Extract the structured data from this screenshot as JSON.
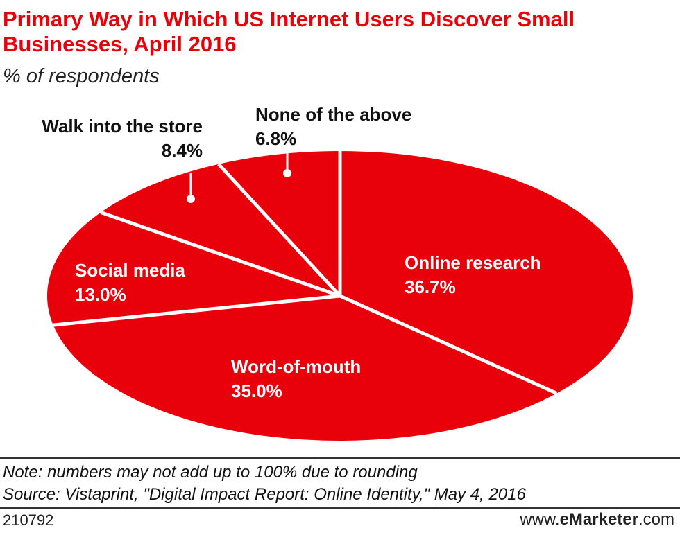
{
  "header": {
    "title": "Primary Way in Which US Internet Users Discover Small Businesses, April 2016",
    "subtitle": "% of respondents"
  },
  "colors": {
    "slice": "#e8000b",
    "divider": "#ffffff",
    "dark_label": "#111111",
    "light_label": "#ffffff"
  },
  "chart_data": {
    "type": "pie",
    "start": "12 o'clock, clockwise",
    "slices": [
      {
        "label": "Online research",
        "value": 36.7,
        "display": "36.7%",
        "label_color": "light_label"
      },
      {
        "label": "Word-of-mouth",
        "value": 35.0,
        "display": "35.0%",
        "label_color": "light_label"
      },
      {
        "label": "Social media",
        "value": 13.0,
        "display": "13.0%",
        "label_color": "light_label"
      },
      {
        "label": "Walk into the store",
        "value": 8.4,
        "display": "8.4%",
        "label_color": "dark_label"
      },
      {
        "label": "None of the above",
        "value": 6.8,
        "display": "6.8%",
        "label_color": "dark_label"
      }
    ]
  },
  "footer": {
    "note": "Note: numbers may not add up to 100% due to rounding",
    "source": "Source: Vistaprint, \"Digital Impact Report: Online Identity,\" May 4, 2016",
    "chart_id": "210792",
    "brand_prefix": "www.",
    "brand_name": "eMarketer",
    "brand_suffix": ".com"
  }
}
